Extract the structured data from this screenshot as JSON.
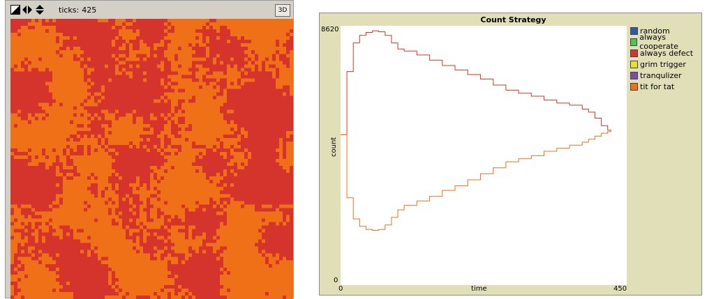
{
  "view": {
    "ticks_label": "ticks:",
    "ticks_value": "425",
    "btn_3d": "3D",
    "colors": {
      "defect": "#d4342c",
      "tit_for_tat": "#f07018"
    }
  },
  "plot": {
    "title": "Count Strategy",
    "ylabel": "count",
    "xlabel": "time",
    "xmin": "0",
    "xmax": "450",
    "ymin": "0",
    "ymax": "8620",
    "legend": [
      {
        "label": "random",
        "color": "#2a5ab0"
      },
      {
        "label": "always cooperate",
        "color": "#4cc45a"
      },
      {
        "label": "always defect",
        "color": "#d4342c"
      },
      {
        "label": "grim trigger",
        "color": "#e8e030"
      },
      {
        "label": "tranqulizer",
        "color": "#7a4cb0"
      },
      {
        "label": "tit for tat",
        "color": "#f07018"
      }
    ]
  },
  "chart_data": {
    "type": "line",
    "title": "Count Strategy",
    "xlabel": "time",
    "ylabel": "count",
    "xlim": [
      0,
      450
    ],
    "ylim": [
      0,
      8620
    ],
    "series": [
      {
        "name": "always defect",
        "color": "#d4342c",
        "x": [
          0,
          5,
          10,
          20,
          30,
          40,
          50,
          60,
          70,
          80,
          90,
          100,
          120,
          140,
          160,
          180,
          200,
          220,
          240,
          260,
          280,
          300,
          320,
          340,
          360,
          380,
          390,
          400,
          410,
          420,
          425
        ],
        "y": [
          5000,
          5000,
          7100,
          8050,
          8300,
          8400,
          8450,
          8420,
          8300,
          8050,
          7850,
          7780,
          7650,
          7480,
          7300,
          7150,
          7000,
          6850,
          6650,
          6480,
          6380,
          6280,
          6150,
          6050,
          5980,
          5850,
          5750,
          5550,
          5300,
          5150,
          5100
        ]
      },
      {
        "name": "tit for tat",
        "color": "#f07018",
        "x": [
          0,
          5,
          10,
          20,
          30,
          40,
          50,
          60,
          70,
          80,
          90,
          100,
          120,
          140,
          160,
          180,
          200,
          220,
          240,
          260,
          280,
          300,
          320,
          340,
          360,
          380,
          390,
          400,
          410,
          420,
          425
        ],
        "y": [
          5000,
          5000,
          2900,
          2200,
          1950,
          1850,
          1820,
          1850,
          2000,
          2250,
          2500,
          2650,
          2800,
          2950,
          3150,
          3300,
          3500,
          3700,
          3900,
          4100,
          4200,
          4300,
          4450,
          4550,
          4650,
          4750,
          4850,
          4950,
          5050,
          5100,
          5100
        ]
      }
    ]
  }
}
